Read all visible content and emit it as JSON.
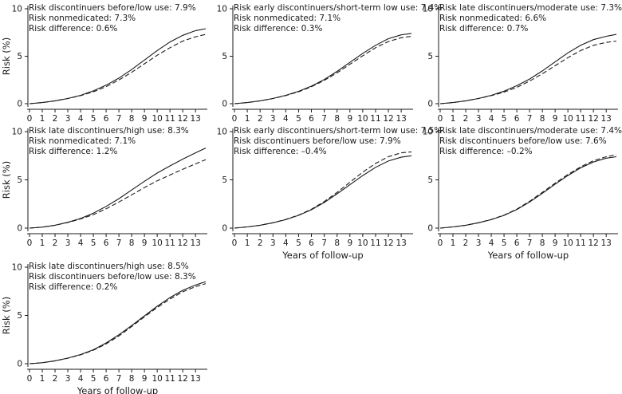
{
  "chart_data": [
    {
      "type": "line",
      "annotations": [
        "Risk discontinuers before/low use: 7.9%",
        "Risk nonmedicated: 7.3%",
        "Risk difference: 0.6%"
      ],
      "ylabel": "Risk (%)",
      "xlabel": "",
      "xlim": [
        0,
        13.8
      ],
      "ylim": [
        0,
        10
      ],
      "xticks": [
        "0",
        "1",
        "2",
        "3",
        "4",
        "5",
        "6",
        "7",
        "8",
        "9",
        "10",
        "11",
        "12",
        "13"
      ],
      "yticks": [
        "0",
        "5",
        "10"
      ],
      "series": [
        {
          "style": "solid",
          "x": [
            0,
            1,
            2,
            3,
            4,
            5,
            6,
            7,
            8,
            9,
            10,
            11,
            12,
            13,
            13.8
          ],
          "y": [
            0,
            0.12,
            0.3,
            0.55,
            0.88,
            1.35,
            1.95,
            2.7,
            3.6,
            4.6,
            5.6,
            6.5,
            7.2,
            7.7,
            7.9
          ]
        },
        {
          "style": "dashed",
          "x": [
            0,
            1,
            2,
            3,
            4,
            5,
            6,
            7,
            8,
            9,
            10,
            11,
            12,
            13,
            13.8
          ],
          "y": [
            0,
            0.12,
            0.3,
            0.55,
            0.85,
            1.25,
            1.8,
            2.5,
            3.3,
            4.2,
            5.1,
            5.9,
            6.6,
            7.05,
            7.3
          ]
        }
      ]
    },
    {
      "type": "line",
      "annotations": [
        "Risk early discontinuers/short-term low use: 7.4%",
        "Risk nonmedicated: 7.1%",
        "Risk difference: 0.3%"
      ],
      "ylabel": "",
      "xlabel": "",
      "xlim": [
        0,
        13.8
      ],
      "ylim": [
        0,
        10
      ],
      "xticks": [
        "0",
        "1",
        "2",
        "3",
        "4",
        "5",
        "6",
        "7",
        "8",
        "9",
        "10",
        "11",
        "12",
        "13"
      ],
      "yticks": [
        "0",
        "5",
        "10"
      ],
      "series": [
        {
          "style": "solid",
          "x": [
            0,
            1,
            2,
            3,
            4,
            5,
            6,
            7,
            8,
            9,
            10,
            11,
            12,
            13,
            13.8
          ],
          "y": [
            0,
            0.12,
            0.3,
            0.55,
            0.88,
            1.3,
            1.85,
            2.55,
            3.4,
            4.35,
            5.3,
            6.15,
            6.85,
            7.25,
            7.4
          ]
        },
        {
          "style": "dashed",
          "x": [
            0,
            1,
            2,
            3,
            4,
            5,
            6,
            7,
            8,
            9,
            10,
            11,
            12,
            13,
            13.8
          ],
          "y": [
            0,
            0.12,
            0.3,
            0.55,
            0.86,
            1.25,
            1.78,
            2.45,
            3.25,
            4.15,
            5.05,
            5.9,
            6.55,
            6.95,
            7.1
          ]
        }
      ]
    },
    {
      "type": "line",
      "annotations": [
        "Risk late discontinuers/moderate use: 7.3%",
        "Risk nonmedicated: 6.6%",
        "Risk difference: 0.7%"
      ],
      "ylabel": "",
      "xlabel": "",
      "xlim": [
        0,
        13.8
      ],
      "ylim": [
        0,
        10
      ],
      "xticks": [
        "0",
        "1",
        "2",
        "3",
        "4",
        "5",
        "6",
        "7",
        "8",
        "9",
        "10",
        "11",
        "12",
        "13"
      ],
      "yticks": [
        "0",
        "5",
        "10"
      ],
      "series": [
        {
          "style": "solid",
          "x": [
            0,
            1,
            2,
            3,
            4,
            5,
            6,
            7,
            8,
            9,
            10,
            11,
            12,
            13,
            13.8
          ],
          "y": [
            0,
            0.12,
            0.3,
            0.55,
            0.88,
            1.32,
            1.9,
            2.6,
            3.45,
            4.4,
            5.35,
            6.15,
            6.75,
            7.1,
            7.3
          ]
        },
        {
          "style": "dashed",
          "x": [
            0,
            1,
            2,
            3,
            4,
            5,
            6,
            7,
            8,
            9,
            10,
            11,
            12,
            13,
            13.8
          ],
          "y": [
            0,
            0.12,
            0.3,
            0.55,
            0.85,
            1.22,
            1.72,
            2.38,
            3.15,
            4.0,
            4.85,
            5.6,
            6.15,
            6.45,
            6.6
          ]
        }
      ]
    },
    {
      "type": "line",
      "annotations": [
        "Risk late discontinuers/high use: 8.3%",
        "Risk nonmedicated: 7.1%",
        "Risk difference: 1.2%"
      ],
      "ylabel": "Risk (%)",
      "xlabel": "",
      "xlim": [
        0,
        13.8
      ],
      "ylim": [
        0,
        10
      ],
      "xticks": [
        "0",
        "1",
        "2",
        "3",
        "4",
        "5",
        "6",
        "7",
        "8",
        "9",
        "10",
        "11",
        "12",
        "13"
      ],
      "yticks": [
        "0",
        "5",
        "10"
      ],
      "series": [
        {
          "style": "solid",
          "x": [
            0,
            1,
            2,
            3,
            4,
            5,
            6,
            7,
            8,
            9,
            10,
            11,
            12,
            13,
            13.8
          ],
          "y": [
            0,
            0.1,
            0.3,
            0.6,
            1.0,
            1.55,
            2.25,
            3.05,
            3.95,
            4.85,
            5.7,
            6.45,
            7.15,
            7.8,
            8.3
          ]
        },
        {
          "style": "dashed",
          "x": [
            0,
            1,
            2,
            3,
            4,
            5,
            6,
            7,
            8,
            9,
            10,
            11,
            12,
            13,
            13.8
          ],
          "y": [
            0,
            0.1,
            0.3,
            0.58,
            0.95,
            1.4,
            2.0,
            2.7,
            3.45,
            4.2,
            4.9,
            5.5,
            6.1,
            6.65,
            7.1
          ]
        }
      ]
    },
    {
      "type": "line",
      "annotations": [
        "Risk early discontinuers/short-term low use: 7.5%",
        "Risk discontinuers before/low use: 7.9%",
        "Risk difference: –0.4%"
      ],
      "ylabel": "",
      "xlabel": "Years of follow-up",
      "xlim": [
        0,
        13.8
      ],
      "ylim": [
        0,
        10
      ],
      "xticks": [
        "0",
        "1",
        "2",
        "3",
        "4",
        "5",
        "6",
        "7",
        "8",
        "9",
        "10",
        "11",
        "12",
        "13"
      ],
      "yticks": [
        "0",
        "5",
        "10"
      ],
      "series": [
        {
          "style": "solid",
          "x": [
            0,
            1,
            2,
            3,
            4,
            5,
            6,
            7,
            8,
            9,
            10,
            11,
            12,
            13,
            13.8
          ],
          "y": [
            0,
            0.12,
            0.3,
            0.55,
            0.88,
            1.32,
            1.9,
            2.65,
            3.55,
            4.5,
            5.45,
            6.3,
            6.95,
            7.35,
            7.5
          ]
        },
        {
          "style": "dashed",
          "x": [
            0,
            1,
            2,
            3,
            4,
            5,
            6,
            7,
            8,
            9,
            10,
            11,
            12,
            13,
            13.8
          ],
          "y": [
            0,
            0.12,
            0.3,
            0.55,
            0.9,
            1.35,
            1.95,
            2.75,
            3.7,
            4.75,
            5.8,
            6.7,
            7.4,
            7.8,
            7.9
          ]
        }
      ]
    },
    {
      "type": "line",
      "annotations": [
        "Risk late discontinuers/moderate use: 7.4%",
        "Risk discontinuers before/low use: 7.6%",
        "Risk difference: –0.2%"
      ],
      "ylabel": "",
      "xlabel": "Years of follow-up",
      "xlim": [
        0,
        13.8
      ],
      "ylim": [
        0,
        10
      ],
      "xticks": [
        "0",
        "1",
        "2",
        "3",
        "4",
        "5",
        "6",
        "7",
        "8",
        "9",
        "10",
        "11",
        "12",
        "13"
      ],
      "yticks": [
        "0",
        "5",
        "10"
      ],
      "series": [
        {
          "style": "solid",
          "x": [
            0,
            1,
            2,
            3,
            4,
            5,
            6,
            7,
            8,
            9,
            10,
            11,
            12,
            13,
            13.8
          ],
          "y": [
            0,
            0.12,
            0.3,
            0.55,
            0.88,
            1.32,
            1.92,
            2.7,
            3.6,
            4.55,
            5.45,
            6.25,
            6.85,
            7.25,
            7.4
          ]
        },
        {
          "style": "dashed",
          "x": [
            0,
            1,
            2,
            3,
            4,
            5,
            6,
            7,
            8,
            9,
            10,
            11,
            12,
            13,
            13.8
          ],
          "y": [
            0,
            0.12,
            0.3,
            0.55,
            0.9,
            1.35,
            1.97,
            2.78,
            3.7,
            4.65,
            5.55,
            6.35,
            6.98,
            7.4,
            7.6
          ]
        }
      ]
    },
    {
      "type": "line",
      "annotations": [
        "Risk late discontinuers/high use: 8.5%",
        "Risk discontinuers before/low use: 8.3%",
        "Risk difference: 0.2%"
      ],
      "ylabel": "Risk (%)",
      "xlabel": "Years of follow-up",
      "xlim": [
        0,
        13.8
      ],
      "ylim": [
        0,
        10
      ],
      "xticks": [
        "0",
        "1",
        "2",
        "3",
        "4",
        "5",
        "6",
        "7",
        "8",
        "9",
        "10",
        "11",
        "12",
        "13"
      ],
      "yticks": [
        "0",
        "5",
        "10"
      ],
      "series": [
        {
          "style": "solid",
          "x": [
            0,
            1,
            2,
            3,
            4,
            5,
            6,
            7,
            8,
            9,
            10,
            11,
            12,
            13,
            13.8
          ],
          "y": [
            0,
            0.1,
            0.3,
            0.58,
            0.95,
            1.45,
            2.15,
            3.0,
            3.95,
            4.95,
            5.95,
            6.85,
            7.6,
            8.15,
            8.5
          ]
        },
        {
          "style": "dashed",
          "x": [
            0,
            1,
            2,
            3,
            4,
            5,
            6,
            7,
            8,
            9,
            10,
            11,
            12,
            13,
            13.8
          ],
          "y": [
            0,
            0.1,
            0.3,
            0.57,
            0.92,
            1.4,
            2.05,
            2.88,
            3.85,
            4.85,
            5.82,
            6.7,
            7.45,
            7.98,
            8.3
          ]
        }
      ]
    }
  ]
}
